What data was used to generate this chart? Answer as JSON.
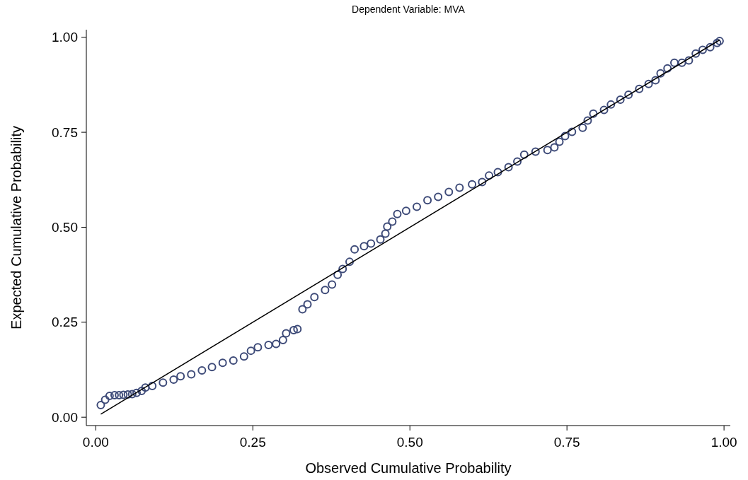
{
  "chart_data": {
    "type": "scatter",
    "title": "Dependent Variable: MVA",
    "xlabel": "Observed Cumulative Probability",
    "ylabel": "Expected Cumulative Probability",
    "xlim": [
      -0.015,
      1.01
    ],
    "ylim": [
      -0.022,
      1.02
    ],
    "xticks": [
      {
        "value": 0,
        "label": "0.00"
      },
      {
        "value": 0.25,
        "label": "0.25"
      },
      {
        "value": 0.5,
        "label": "0.50"
      },
      {
        "value": 0.75,
        "label": "0.75"
      },
      {
        "value": 1,
        "label": "1.00"
      }
    ],
    "yticks": [
      {
        "value": 0,
        "label": "0.00"
      },
      {
        "value": 0.25,
        "label": "0.25"
      },
      {
        "value": 0.5,
        "label": "0.50"
      },
      {
        "value": 0.75,
        "label": "0.75"
      },
      {
        "value": 1,
        "label": "1.00"
      }
    ],
    "grid": false,
    "series": [
      {
        "color": "#3d4a78",
        "marker": "circle",
        "x": [
          0.008,
          0.015,
          0.022,
          0.03,
          0.037,
          0.044,
          0.051,
          0.058,
          0.065,
          0.073,
          0.079,
          0.09,
          0.107,
          0.124,
          0.135,
          0.152,
          0.169,
          0.185,
          0.202,
          0.219,
          0.236,
          0.247,
          0.258,
          0.275,
          0.287,
          0.298,
          0.303,
          0.315,
          0.321,
          0.329,
          0.337,
          0.348,
          0.365,
          0.376,
          0.385,
          0.393,
          0.404,
          0.412,
          0.427,
          0.438,
          0.453,
          0.461,
          0.464,
          0.472,
          0.48,
          0.494,
          0.511,
          0.528,
          0.545,
          0.562,
          0.579,
          0.599,
          0.615,
          0.626,
          0.64,
          0.657,
          0.671,
          0.682,
          0.7,
          0.719,
          0.73,
          0.738,
          0.747,
          0.758,
          0.775,
          0.783,
          0.792,
          0.809,
          0.82,
          0.835,
          0.848,
          0.865,
          0.88,
          0.891,
          0.899,
          0.91,
          0.921,
          0.933,
          0.944,
          0.955,
          0.966,
          0.978,
          0.989,
          0.993
        ],
        "values": [
          0.032,
          0.046,
          0.056,
          0.058,
          0.058,
          0.059,
          0.06,
          0.061,
          0.064,
          0.069,
          0.078,
          0.082,
          0.091,
          0.099,
          0.108,
          0.113,
          0.123,
          0.132,
          0.143,
          0.149,
          0.16,
          0.175,
          0.184,
          0.19,
          0.193,
          0.203,
          0.221,
          0.229,
          0.232,
          0.284,
          0.297,
          0.316,
          0.335,
          0.349,
          0.375,
          0.39,
          0.409,
          0.442,
          0.45,
          0.457,
          0.468,
          0.483,
          0.502,
          0.515,
          0.535,
          0.543,
          0.554,
          0.571,
          0.58,
          0.593,
          0.604,
          0.613,
          0.619,
          0.636,
          0.645,
          0.658,
          0.673,
          0.691,
          0.699,
          0.703,
          0.71,
          0.725,
          0.74,
          0.751,
          0.762,
          0.781,
          0.799,
          0.809,
          0.823,
          0.836,
          0.849,
          0.864,
          0.877,
          0.887,
          0.905,
          0.918,
          0.933,
          0.933,
          0.939,
          0.957,
          0.967,
          0.974,
          0.985,
          0.99
        ]
      },
      {
        "type": "line",
        "color": "#000000",
        "line_style": "solid",
        "x": [
          0.008,
          0.993
        ],
        "values": [
          0.008,
          0.993
        ]
      }
    ]
  }
}
